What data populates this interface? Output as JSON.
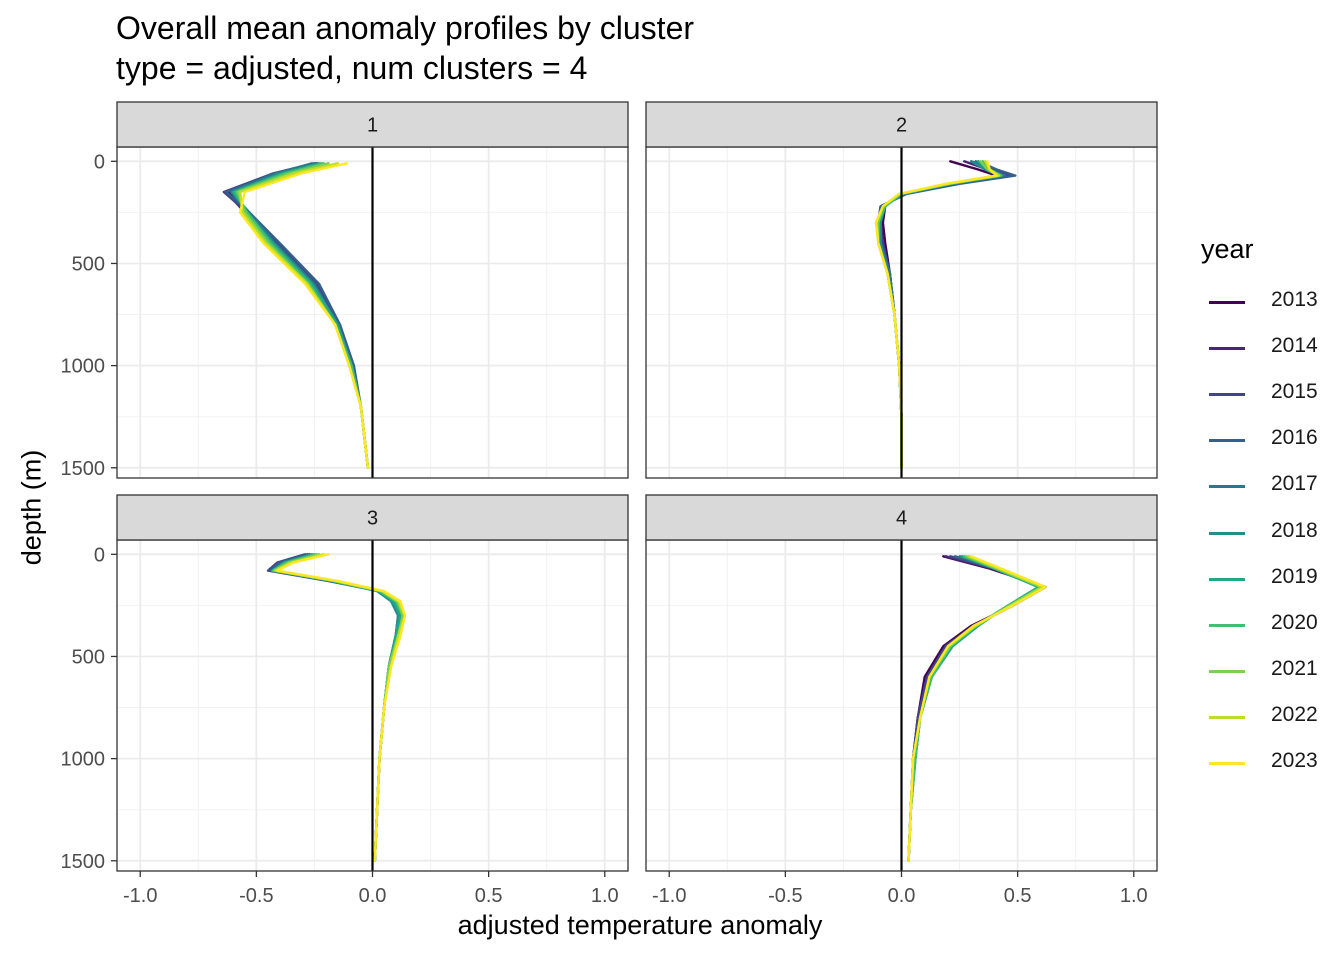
{
  "title": "Overall mean anomaly profiles by cluster",
  "subtitle": "type = adjusted, num clusters = 4",
  "chart_data": {
    "type": "line",
    "title": "Overall mean anomaly profiles by cluster",
    "subtitle": "type = adjusted, num clusters = 4",
    "xlabel": "adjusted temperature anomaly",
    "ylabel": "depth (m)",
    "xlim": [
      -1.1,
      1.1
    ],
    "ylim": [
      1550,
      -70
    ],
    "y_reversed": true,
    "x_ticks": [
      "-1.0",
      "-0.5",
      "0.0",
      "0.5",
      "1.0"
    ],
    "x_tick_values": [
      -1.0,
      -0.5,
      0.0,
      0.5,
      1.0
    ],
    "y_ticks": [
      "0",
      "500",
      "1000",
      "1500"
    ],
    "y_tick_values": [
      0,
      500,
      1000,
      1500
    ],
    "grid": true,
    "reference_line_x": 0,
    "legend": {
      "title": "year",
      "position": "right",
      "entries": [
        "2013",
        "2014",
        "2015",
        "2016",
        "2017",
        "2018",
        "2019",
        "2020",
        "2021",
        "2022",
        "2023"
      ],
      "colors": [
        "#440154",
        "#482576",
        "#414487",
        "#35608D",
        "#2A788E",
        "#21908C",
        "#22A884",
        "#43BF71",
        "#7AD151",
        "#BBDF27",
        "#FDE725"
      ]
    },
    "panels": [
      {
        "strip": "1",
        "depth": [
          10,
          60,
          150,
          250,
          400,
          600,
          800,
          1000,
          1200,
          1500
        ],
        "series": [
          {
            "name": "2013",
            "x": [
              -0.24,
              -0.4,
              -0.62,
              -0.54,
              -0.44,
              -0.27,
              -0.15,
              -0.09,
              -0.05,
              -0.02
            ]
          },
          {
            "name": "2014",
            "x": [
              -0.24,
              -0.42,
              -0.63,
              -0.55,
              -0.43,
              -0.26,
              -0.15,
              -0.09,
              -0.05,
              -0.02
            ]
          },
          {
            "name": "2015",
            "x": [
              -0.25,
              -0.43,
              -0.64,
              -0.54,
              -0.41,
              -0.24,
              -0.14,
              -0.09,
              -0.05,
              -0.02
            ]
          },
          {
            "name": "2016",
            "x": [
              -0.24,
              -0.42,
              -0.63,
              -0.53,
              -0.4,
              -0.23,
              -0.14,
              -0.08,
              -0.05,
              -0.02
            ]
          },
          {
            "name": "2017",
            "x": [
              -0.26,
              -0.42,
              -0.61,
              -0.53,
              -0.42,
              -0.25,
              -0.15,
              -0.09,
              -0.05,
              -0.02
            ]
          },
          {
            "name": "2018",
            "x": [
              -0.23,
              -0.4,
              -0.6,
              -0.54,
              -0.43,
              -0.26,
              -0.15,
              -0.09,
              -0.05,
              -0.02
            ]
          },
          {
            "name": "2019",
            "x": [
              -0.22,
              -0.39,
              -0.6,
              -0.54,
              -0.43,
              -0.26,
              -0.15,
              -0.09,
              -0.05,
              -0.02
            ]
          },
          {
            "name": "2020",
            "x": [
              -0.21,
              -0.38,
              -0.59,
              -0.54,
              -0.44,
              -0.27,
              -0.16,
              -0.09,
              -0.05,
              -0.02
            ]
          },
          {
            "name": "2021",
            "x": [
              -0.19,
              -0.36,
              -0.58,
              -0.55,
              -0.45,
              -0.28,
              -0.16,
              -0.1,
              -0.05,
              -0.02
            ]
          },
          {
            "name": "2022",
            "x": [
              -0.15,
              -0.34,
              -0.57,
              -0.56,
              -0.46,
              -0.28,
              -0.16,
              -0.1,
              -0.05,
              -0.02
            ]
          },
          {
            "name": "2023",
            "x": [
              -0.11,
              -0.31,
              -0.55,
              -0.57,
              -0.47,
              -0.29,
              -0.16,
              -0.1,
              -0.05,
              -0.02
            ]
          }
        ]
      },
      {
        "strip": "2",
        "depth": [
          0,
          40,
          70,
          110,
          160,
          220,
          300,
          400,
          550,
          750,
          1000,
          1250,
          1500
        ],
        "series": [
          {
            "name": "2013",
            "x": [
              0.21,
              0.33,
              0.41,
              0.2,
              0.0,
              -0.07,
              -0.08,
              -0.07,
              -0.05,
              -0.03,
              -0.01,
              0.0,
              0.0
            ]
          },
          {
            "name": "2014",
            "x": [
              0.27,
              0.37,
              0.44,
              0.22,
              0.01,
              -0.08,
              -0.09,
              -0.08,
              -0.05,
              -0.03,
              -0.01,
              0.0,
              0.0
            ]
          },
          {
            "name": "2015",
            "x": [
              0.3,
              0.4,
              0.47,
              0.24,
              0.02,
              -0.09,
              -0.1,
              -0.08,
              -0.05,
              -0.03,
              -0.01,
              0.0,
              0.0
            ]
          },
          {
            "name": "2016",
            "x": [
              0.33,
              0.41,
              0.49,
              0.25,
              0.02,
              -0.09,
              -0.1,
              -0.09,
              -0.05,
              -0.03,
              -0.01,
              0.0,
              0.0
            ]
          },
          {
            "name": "2017",
            "x": [
              0.32,
              0.38,
              0.44,
              0.22,
              0.01,
              -0.08,
              -0.1,
              -0.09,
              -0.05,
              -0.03,
              -0.01,
              0.0,
              0.0
            ]
          },
          {
            "name": "2018",
            "x": [
              0.3,
              0.36,
              0.42,
              0.21,
              0.0,
              -0.07,
              -0.09,
              -0.09,
              -0.06,
              -0.03,
              -0.01,
              0.0,
              0.0
            ]
          },
          {
            "name": "2019",
            "x": [
              0.33,
              0.37,
              0.43,
              0.21,
              0.0,
              -0.07,
              -0.1,
              -0.1,
              -0.06,
              -0.03,
              -0.01,
              0.0,
              0.0
            ]
          },
          {
            "name": "2020",
            "x": [
              0.35,
              0.38,
              0.43,
              0.21,
              0.0,
              -0.07,
              -0.1,
              -0.1,
              -0.06,
              -0.03,
              -0.01,
              0.0,
              0.0
            ]
          },
          {
            "name": "2021",
            "x": [
              0.34,
              0.37,
              0.42,
              0.2,
              -0.01,
              -0.08,
              -0.1,
              -0.1,
              -0.06,
              -0.03,
              -0.01,
              0.0,
              0.0
            ]
          },
          {
            "name": "2022",
            "x": [
              0.36,
              0.38,
              0.42,
              0.2,
              -0.01,
              -0.08,
              -0.11,
              -0.1,
              -0.06,
              -0.03,
              -0.01,
              0.0,
              0.0
            ]
          },
          {
            "name": "2023",
            "x": [
              0.37,
              0.38,
              0.41,
              0.19,
              -0.01,
              -0.08,
              -0.11,
              -0.1,
              -0.06,
              -0.03,
              -0.01,
              0.0,
              0.0
            ]
          }
        ]
      },
      {
        "strip": "3",
        "depth": [
          0,
          40,
          80,
          130,
          180,
          230,
          300,
          400,
          550,
          750,
          1000,
          1250,
          1500
        ],
        "series": [
          {
            "name": "2013",
            "x": [
              -0.27,
              -0.38,
              -0.43,
              -0.18,
              0.03,
              0.09,
              0.11,
              0.1,
              0.07,
              0.05,
              0.03,
              0.02,
              0.01
            ]
          },
          {
            "name": "2014",
            "x": [
              -0.28,
              -0.4,
              -0.44,
              -0.19,
              0.03,
              0.1,
              0.12,
              0.1,
              0.07,
              0.05,
              0.03,
              0.02,
              0.01
            ]
          },
          {
            "name": "2015",
            "x": [
              -0.29,
              -0.41,
              -0.45,
              -0.19,
              0.03,
              0.1,
              0.12,
              0.1,
              0.07,
              0.05,
              0.03,
              0.02,
              0.01
            ]
          },
          {
            "name": "2016",
            "x": [
              -0.28,
              -0.4,
              -0.44,
              -0.18,
              0.03,
              0.09,
              0.12,
              0.1,
              0.07,
              0.05,
              0.03,
              0.02,
              0.01
            ]
          },
          {
            "name": "2017",
            "x": [
              -0.26,
              -0.38,
              -0.43,
              -0.18,
              0.03,
              0.09,
              0.12,
              0.1,
              0.07,
              0.05,
              0.03,
              0.02,
              0.01
            ]
          },
          {
            "name": "2018",
            "x": [
              -0.25,
              -0.37,
              -0.42,
              -0.18,
              0.02,
              0.08,
              0.11,
              0.1,
              0.07,
              0.05,
              0.03,
              0.02,
              0.01
            ]
          },
          {
            "name": "2019",
            "x": [
              -0.26,
              -0.38,
              -0.43,
              -0.17,
              0.03,
              0.09,
              0.12,
              0.1,
              0.07,
              0.05,
              0.03,
              0.02,
              0.01
            ]
          },
          {
            "name": "2020",
            "x": [
              -0.24,
              -0.37,
              -0.43,
              -0.17,
              0.03,
              0.1,
              0.13,
              0.11,
              0.07,
              0.05,
              0.03,
              0.02,
              0.01
            ]
          },
          {
            "name": "2021",
            "x": [
              -0.23,
              -0.36,
              -0.42,
              -0.16,
              0.04,
              0.11,
              0.13,
              0.11,
              0.07,
              0.05,
              0.03,
              0.02,
              0.01
            ]
          },
          {
            "name": "2022",
            "x": [
              -0.21,
              -0.35,
              -0.42,
              -0.16,
              0.04,
              0.11,
              0.14,
              0.11,
              0.08,
              0.05,
              0.03,
              0.02,
              0.01
            ]
          },
          {
            "name": "2023",
            "x": [
              -0.19,
              -0.34,
              -0.41,
              -0.15,
              0.05,
              0.12,
              0.14,
              0.12,
              0.08,
              0.05,
              0.03,
              0.02,
              0.01
            ]
          }
        ]
      },
      {
        "strip": "4",
        "depth": [
          10,
          70,
          160,
          250,
          350,
          450,
          600,
          800,
          1000,
          1250,
          1500
        ],
        "series": [
          {
            "name": "2013",
            "x": [
              0.18,
              0.38,
              0.62,
              0.48,
              0.3,
              0.18,
              0.1,
              0.07,
              0.05,
              0.04,
              0.03
            ]
          },
          {
            "name": "2014",
            "x": [
              0.19,
              0.39,
              0.62,
              0.48,
              0.31,
              0.19,
              0.11,
              0.07,
              0.05,
              0.04,
              0.03
            ]
          },
          {
            "name": "2015",
            "x": [
              0.21,
              0.4,
              0.61,
              0.48,
              0.31,
              0.19,
              0.11,
              0.07,
              0.05,
              0.04,
              0.03
            ]
          },
          {
            "name": "2016",
            "x": [
              0.23,
              0.4,
              0.6,
              0.47,
              0.32,
              0.2,
              0.12,
              0.08,
              0.05,
              0.04,
              0.03
            ]
          },
          {
            "name": "2017",
            "x": [
              0.25,
              0.4,
              0.6,
              0.46,
              0.32,
              0.21,
              0.13,
              0.08,
              0.06,
              0.04,
              0.03
            ]
          },
          {
            "name": "2018",
            "x": [
              0.26,
              0.4,
              0.59,
              0.46,
              0.33,
              0.22,
              0.13,
              0.08,
              0.06,
              0.04,
              0.03
            ]
          },
          {
            "name": "2019",
            "x": [
              0.26,
              0.4,
              0.59,
              0.46,
              0.33,
              0.22,
              0.13,
              0.08,
              0.06,
              0.04,
              0.03
            ]
          },
          {
            "name": "2020",
            "x": [
              0.27,
              0.41,
              0.6,
              0.46,
              0.32,
              0.21,
              0.13,
              0.08,
              0.06,
              0.04,
              0.03
            ]
          },
          {
            "name": "2021",
            "x": [
              0.28,
              0.41,
              0.6,
              0.47,
              0.32,
              0.21,
              0.12,
              0.08,
              0.05,
              0.04,
              0.03
            ]
          },
          {
            "name": "2022",
            "x": [
              0.29,
              0.42,
              0.61,
              0.47,
              0.32,
              0.2,
              0.12,
              0.08,
              0.05,
              0.04,
              0.03
            ]
          },
          {
            "name": "2023",
            "x": [
              0.3,
              0.43,
              0.62,
              0.48,
              0.31,
              0.2,
              0.12,
              0.08,
              0.05,
              0.04,
              0.03
            ]
          }
        ]
      }
    ]
  }
}
